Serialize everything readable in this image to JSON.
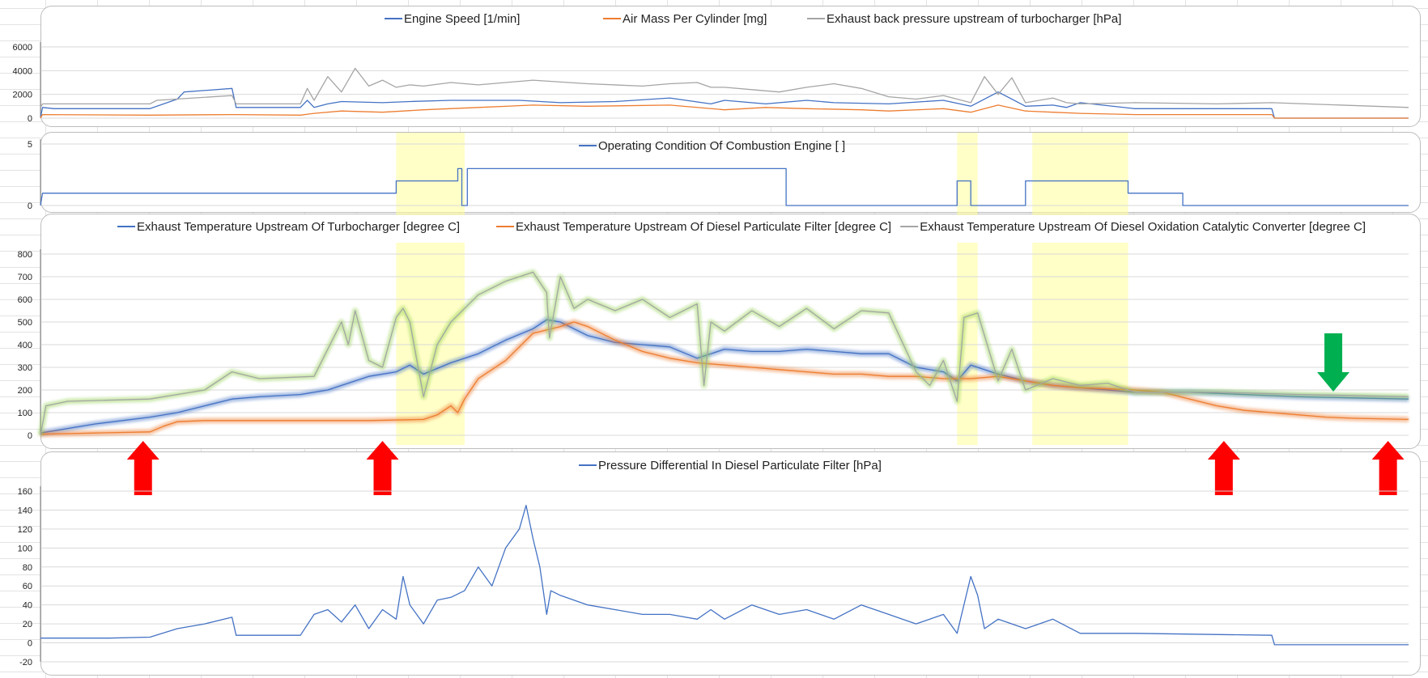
{
  "colors": {
    "blue": "#4472c4",
    "orange": "#ed7d31",
    "gray": "#a5a5a5",
    "green_glow": "#92d050",
    "highlight": "#ffff99",
    "arrow_red": "#ff0000",
    "arrow_green": "#00b050"
  },
  "chart_data": [
    {
      "type": "line",
      "legend_position": "top",
      "grid": true,
      "ylim": [
        0,
        6000
      ],
      "yticks": [
        "0",
        "2000",
        "4000",
        "6000"
      ],
      "series": [
        {
          "name": "Engine Speed [1/min]",
          "color": "blue",
          "x": [
            0,
            0.15,
            1,
            8,
            10,
            10.5,
            14,
            14.3,
            19,
            19.5,
            20,
            21,
            22,
            25,
            27,
            30,
            35,
            38,
            42,
            46,
            49,
            50,
            53,
            56,
            58,
            62,
            66,
            68,
            70,
            72,
            74,
            75,
            76,
            80,
            86,
            90,
            90.2,
            100
          ],
          "y": [
            0,
            900,
            800,
            800,
            1600,
            2200,
            2500,
            900,
            900,
            1500,
            900,
            1200,
            1400,
            1300,
            1400,
            1500,
            1500,
            1300,
            1400,
            1700,
            1200,
            1500,
            1200,
            1500,
            1300,
            1200,
            1500,
            1000,
            2200,
            1000,
            1100,
            900,
            1300,
            800,
            800,
            800,
            0,
            0
          ]
        },
        {
          "name": "Air Mass Per Cylinder [mg]",
          "color": "orange",
          "x": [
            0,
            0.15,
            8,
            14,
            14.3,
            19,
            20,
            22,
            25,
            28,
            32,
            36,
            40,
            46,
            50,
            53,
            56,
            60,
            62,
            66,
            68,
            70,
            72,
            74,
            76,
            80,
            86,
            90,
            90.2,
            100
          ],
          "y": [
            0,
            300,
            250,
            300,
            300,
            250,
            400,
            600,
            500,
            700,
            900,
            1100,
            1000,
            1100,
            700,
            900,
            800,
            700,
            600,
            800,
            500,
            1100,
            600,
            500,
            400,
            300,
            300,
            300,
            0,
            0
          ]
        },
        {
          "name": "Exhaust back pressure upstream of turbocharger [hPa]",
          "color": "gray",
          "x": [
            0,
            0.15,
            8,
            8.5,
            14,
            14.3,
            19,
            19.5,
            20,
            21,
            22,
            23,
            24,
            25,
            26,
            27,
            28,
            30,
            32,
            36,
            40,
            44,
            46,
            48,
            49,
            50,
            52,
            54,
            56,
            58,
            60,
            62,
            64,
            66,
            68,
            69,
            70,
            71,
            72,
            74,
            75,
            76,
            80,
            86,
            90,
            100
          ],
          "y": [
            900,
            1200,
            1200,
            1500,
            1900,
            1200,
            1200,
            2500,
            1500,
            3500,
            2200,
            4200,
            2700,
            3200,
            2600,
            2800,
            2700,
            3000,
            2800,
            3200,
            2900,
            2700,
            2900,
            3000,
            2600,
            2600,
            2400,
            2200,
            2600,
            2900,
            2500,
            1800,
            1600,
            1900,
            1300,
            3500,
            2000,
            3400,
            1300,
            1700,
            1300,
            1200,
            1300,
            1200,
            1300,
            900
          ]
        }
      ]
    },
    {
      "type": "line",
      "legend_position": "top",
      "grid": true,
      "ylim": [
        0,
        5
      ],
      "yticks": [
        "0",
        "5"
      ],
      "highlight_ranges": [
        [
          26,
          31
        ],
        [
          67,
          68.5
        ],
        [
          72.5,
          79.5
        ]
      ],
      "series": [
        {
          "name": "Operating Condition Of Combustion Engine [   ]",
          "color": "blue",
          "x": [
            0,
            0.15,
            26,
            26,
            30.5,
            30.5,
            30.8,
            30.8,
            31.2,
            31.2,
            54.5,
            54.5,
            67,
            67,
            68,
            68,
            72,
            72,
            79.5,
            79.5,
            83.5,
            83.5,
            100
          ],
          "y": [
            0,
            1,
            1,
            2,
            2,
            3,
            3,
            0,
            0,
            3,
            3,
            0,
            0,
            2,
            2,
            0,
            0,
            2,
            2,
            1,
            1,
            0,
            0
          ]
        }
      ]
    },
    {
      "type": "line",
      "legend_position": "top",
      "grid": true,
      "ylim": [
        0,
        800
      ],
      "yticks": [
        "0",
        "100",
        "200",
        "300",
        "400",
        "500",
        "600",
        "700",
        "800"
      ],
      "highlight_ranges": [
        [
          26,
          31
        ],
        [
          67,
          68.5
        ],
        [
          72.5,
          79.5
        ]
      ],
      "arrows": [
        {
          "color": "arrow_red",
          "x": 7.5,
          "direction": "up"
        },
        {
          "color": "arrow_red",
          "x": 25,
          "direction": "up"
        },
        {
          "color": "arrow_red",
          "x": 86.5,
          "direction": "up"
        },
        {
          "color": "arrow_red",
          "x": 98.5,
          "direction": "up"
        },
        {
          "color": "arrow_green",
          "x": 94.5,
          "direction": "down"
        }
      ],
      "series": [
        {
          "name": "Exhaust Temperature Upstream Of Turbocharger [degree C]",
          "color": "blue",
          "glow": "blue",
          "x": [
            0,
            4,
            8,
            10,
            12,
            14,
            16,
            19,
            21,
            22,
            24,
            26,
            27,
            28,
            30,
            32,
            34,
            36,
            37,
            38,
            40,
            42,
            44,
            46,
            48,
            49,
            50,
            52,
            54,
            56,
            58,
            60,
            62,
            64,
            66,
            67,
            68,
            70,
            72,
            74,
            76,
            78,
            80,
            84,
            88,
            92,
            96,
            100
          ],
          "y": [
            10,
            50,
            80,
            100,
            130,
            160,
            170,
            180,
            200,
            220,
            260,
            280,
            310,
            270,
            320,
            360,
            420,
            470,
            510,
            500,
            440,
            410,
            400,
            390,
            340,
            360,
            380,
            370,
            370,
            380,
            370,
            360,
            360,
            300,
            280,
            240,
            310,
            270,
            240,
            220,
            210,
            200,
            190,
            190,
            180,
            170,
            165,
            160
          ]
        },
        {
          "name": "Exhaust Temperature Upstream Of Diesel Particulate Filter [degree C]",
          "color": "orange",
          "glow": "orange",
          "x": [
            0,
            4,
            8,
            9,
            10,
            12,
            16,
            20,
            24,
            28,
            29,
            30,
            30.5,
            31,
            32,
            34,
            36,
            38,
            39,
            40,
            42,
            44,
            46,
            48,
            50,
            52,
            54,
            56,
            58,
            60,
            62,
            64,
            66,
            68,
            70,
            72,
            74,
            76,
            80,
            82,
            84,
            86,
            88,
            90,
            92,
            94,
            96,
            100
          ],
          "y": [
            5,
            10,
            15,
            40,
            60,
            65,
            65,
            65,
            65,
            70,
            90,
            130,
            100,
            160,
            250,
            330,
            450,
            480,
            500,
            480,
            420,
            370,
            340,
            320,
            310,
            300,
            290,
            280,
            270,
            270,
            260,
            260,
            250,
            250,
            260,
            240,
            220,
            210,
            200,
            190,
            160,
            130,
            110,
            100,
            90,
            80,
            75,
            70
          ]
        },
        {
          "name": "Exhaust Temperature Upstream Of Diesel Oxidation Catalytic Converter [degree C]",
          "color": "gray",
          "glow": "green_glow",
          "x": [
            0,
            0.4,
            2,
            8,
            10,
            12,
            14,
            16,
            20,
            21,
            22,
            22.5,
            23,
            24,
            25,
            26,
            26.5,
            27,
            28,
            29,
            30,
            31,
            32,
            34,
            36,
            37,
            37.2,
            38,
            39,
            40,
            42,
            44,
            46,
            48,
            48.5,
            49,
            50,
            52,
            54,
            56,
            58,
            60,
            62,
            64,
            65,
            66,
            67,
            67.5,
            68.5,
            70,
            71,
            72,
            74,
            76,
            78,
            80,
            86,
            92,
            96,
            100
          ],
          "y": [
            0,
            130,
            150,
            160,
            180,
            200,
            280,
            250,
            260,
            380,
            500,
            400,
            550,
            330,
            300,
            520,
            560,
            500,
            170,
            400,
            500,
            560,
            620,
            680,
            720,
            630,
            430,
            700,
            560,
            600,
            550,
            600,
            520,
            580,
            220,
            500,
            460,
            550,
            480,
            560,
            470,
            550,
            540,
            280,
            220,
            330,
            150,
            520,
            540,
            240,
            380,
            200,
            250,
            220,
            230,
            190,
            190,
            180,
            175,
            170
          ]
        }
      ]
    },
    {
      "type": "line",
      "legend_position": "top",
      "grid": true,
      "ylim": [
        -20,
        160
      ],
      "yticks": [
        "-20",
        "0",
        "20",
        "40",
        "60",
        "80",
        "100",
        "120",
        "140",
        "160"
      ],
      "series": [
        {
          "name": "Pressure Differential In Diesel Particulate Filter [hPa]",
          "color": "blue",
          "x": [
            0,
            5,
            8,
            10,
            12,
            14,
            14.3,
            19,
            20,
            21,
            22,
            23,
            24,
            25,
            26,
            26.5,
            27,
            28,
            29,
            30,
            31,
            32,
            33,
            34,
            35,
            35.5,
            36,
            36.5,
            37,
            37.3,
            38,
            40,
            42,
            44,
            46,
            48,
            49,
            50,
            52,
            54,
            56,
            58,
            60,
            62,
            64,
            66,
            67,
            68,
            68.5,
            69,
            70,
            72,
            74,
            76,
            80,
            90,
            90.2,
            100
          ],
          "y": [
            5,
            5,
            6,
            15,
            20,
            27,
            8,
            8,
            30,
            35,
            22,
            40,
            15,
            35,
            25,
            70,
            40,
            20,
            45,
            48,
            55,
            80,
            60,
            100,
            120,
            145,
            110,
            80,
            30,
            55,
            50,
            40,
            35,
            30,
            30,
            25,
            35,
            25,
            40,
            30,
            35,
            25,
            40,
            30,
            20,
            30,
            10,
            70,
            50,
            15,
            25,
            15,
            25,
            10,
            10,
            8,
            -2,
            -2
          ]
        }
      ]
    }
  ]
}
